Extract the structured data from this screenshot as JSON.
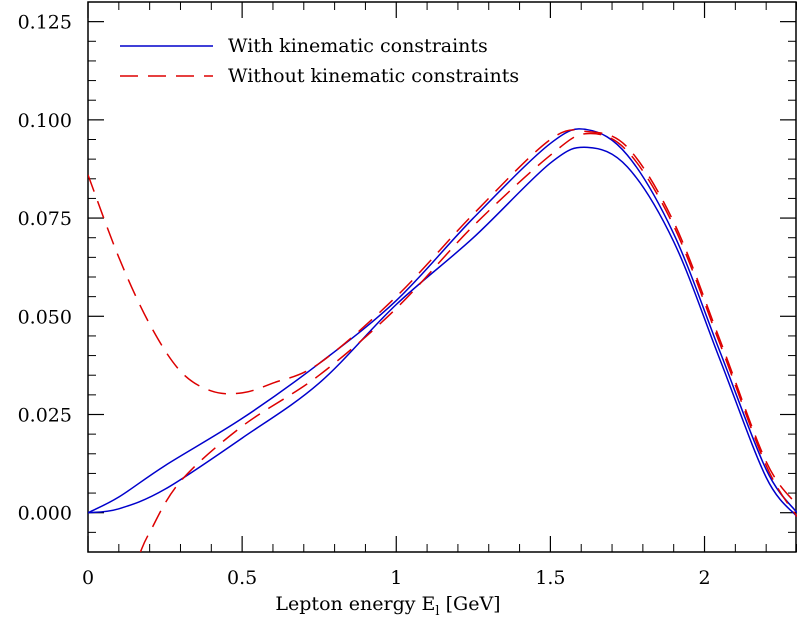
{
  "chart_data": {
    "type": "line",
    "title": "",
    "xlabel": "Lepton energy E",
    "xlabel_subscript": "l",
    "xlabel_unit": "[GeV]",
    "ylabel": "",
    "xlim": [
      0,
      2.3
    ],
    "ylim": [
      -0.01,
      0.13
    ],
    "x_ticks": [
      0,
      0.5,
      1,
      1.5,
      2
    ],
    "x_tick_labels": [
      "0",
      "0.5",
      "1",
      "1.5",
      "2"
    ],
    "y_ticks": [
      0,
      0.025,
      0.05,
      0.075,
      0.1,
      0.125
    ],
    "y_tick_labels": [
      "0.000",
      "0.025",
      "0.050",
      "0.075",
      "0.100",
      "0.125"
    ],
    "grid": false,
    "legend_position": "top-left",
    "legend": [
      {
        "label": "With kinematic constraints",
        "style": "solid",
        "color": "#0000cc"
      },
      {
        "label": "Without kinematic constraints",
        "style": "dashed",
        "color": "#dd0000"
      }
    ],
    "series": [
      {
        "group": "With kinematic constraints",
        "style": "solid",
        "color": "#0000cc",
        "x": [
          0,
          0.1,
          0.25,
          0.5,
          0.75,
          1.0,
          1.25,
          1.5,
          1.62,
          1.75,
          1.9,
          2.05,
          2.2,
          2.3
        ],
        "y": [
          0,
          0.004,
          0.012,
          0.024,
          0.038,
          0.054,
          0.075,
          0.094,
          0.0975,
          0.091,
          0.071,
          0.041,
          0.011,
          0.0
        ]
      },
      {
        "group": "With kinematic constraints",
        "style": "solid",
        "color": "#0000cc",
        "x": [
          0,
          0.1,
          0.25,
          0.5,
          0.75,
          1.0,
          1.25,
          1.5,
          1.62,
          1.75,
          1.9,
          2.05,
          2.2,
          2.3
        ],
        "y": [
          0,
          0.001,
          0.006,
          0.019,
          0.033,
          0.053,
          0.07,
          0.089,
          0.093,
          0.088,
          0.069,
          0.039,
          0.009,
          -0.001
        ]
      },
      {
        "group": "Without kinematic constraints",
        "style": "dashed",
        "color": "#dd0000",
        "x": [
          0,
          0.1,
          0.2,
          0.3,
          0.4,
          0.5,
          0.6,
          0.75,
          1.0,
          1.25,
          1.5,
          1.62,
          1.75,
          1.9,
          2.05,
          2.2,
          2.3
        ],
        "y": [
          0.086,
          0.065,
          0.048,
          0.036,
          0.031,
          0.0305,
          0.033,
          0.038,
          0.055,
          0.076,
          0.095,
          0.097,
          0.093,
          0.074,
          0.044,
          0.013,
          0.002
        ]
      },
      {
        "group": "Without kinematic constraints",
        "style": "dashed",
        "color": "#dd0000",
        "x": [
          0.17,
          0.2,
          0.3,
          0.5,
          0.75,
          1.0,
          1.25,
          1.5,
          1.62,
          1.75,
          1.9,
          2.05,
          2.2,
          2.3
        ],
        "y": [
          -0.01,
          -0.005,
          0.008,
          0.022,
          0.035,
          0.052,
          0.073,
          0.091,
          0.0965,
          0.092,
          0.073,
          0.043,
          0.012,
          -0.001
        ]
      }
    ]
  }
}
